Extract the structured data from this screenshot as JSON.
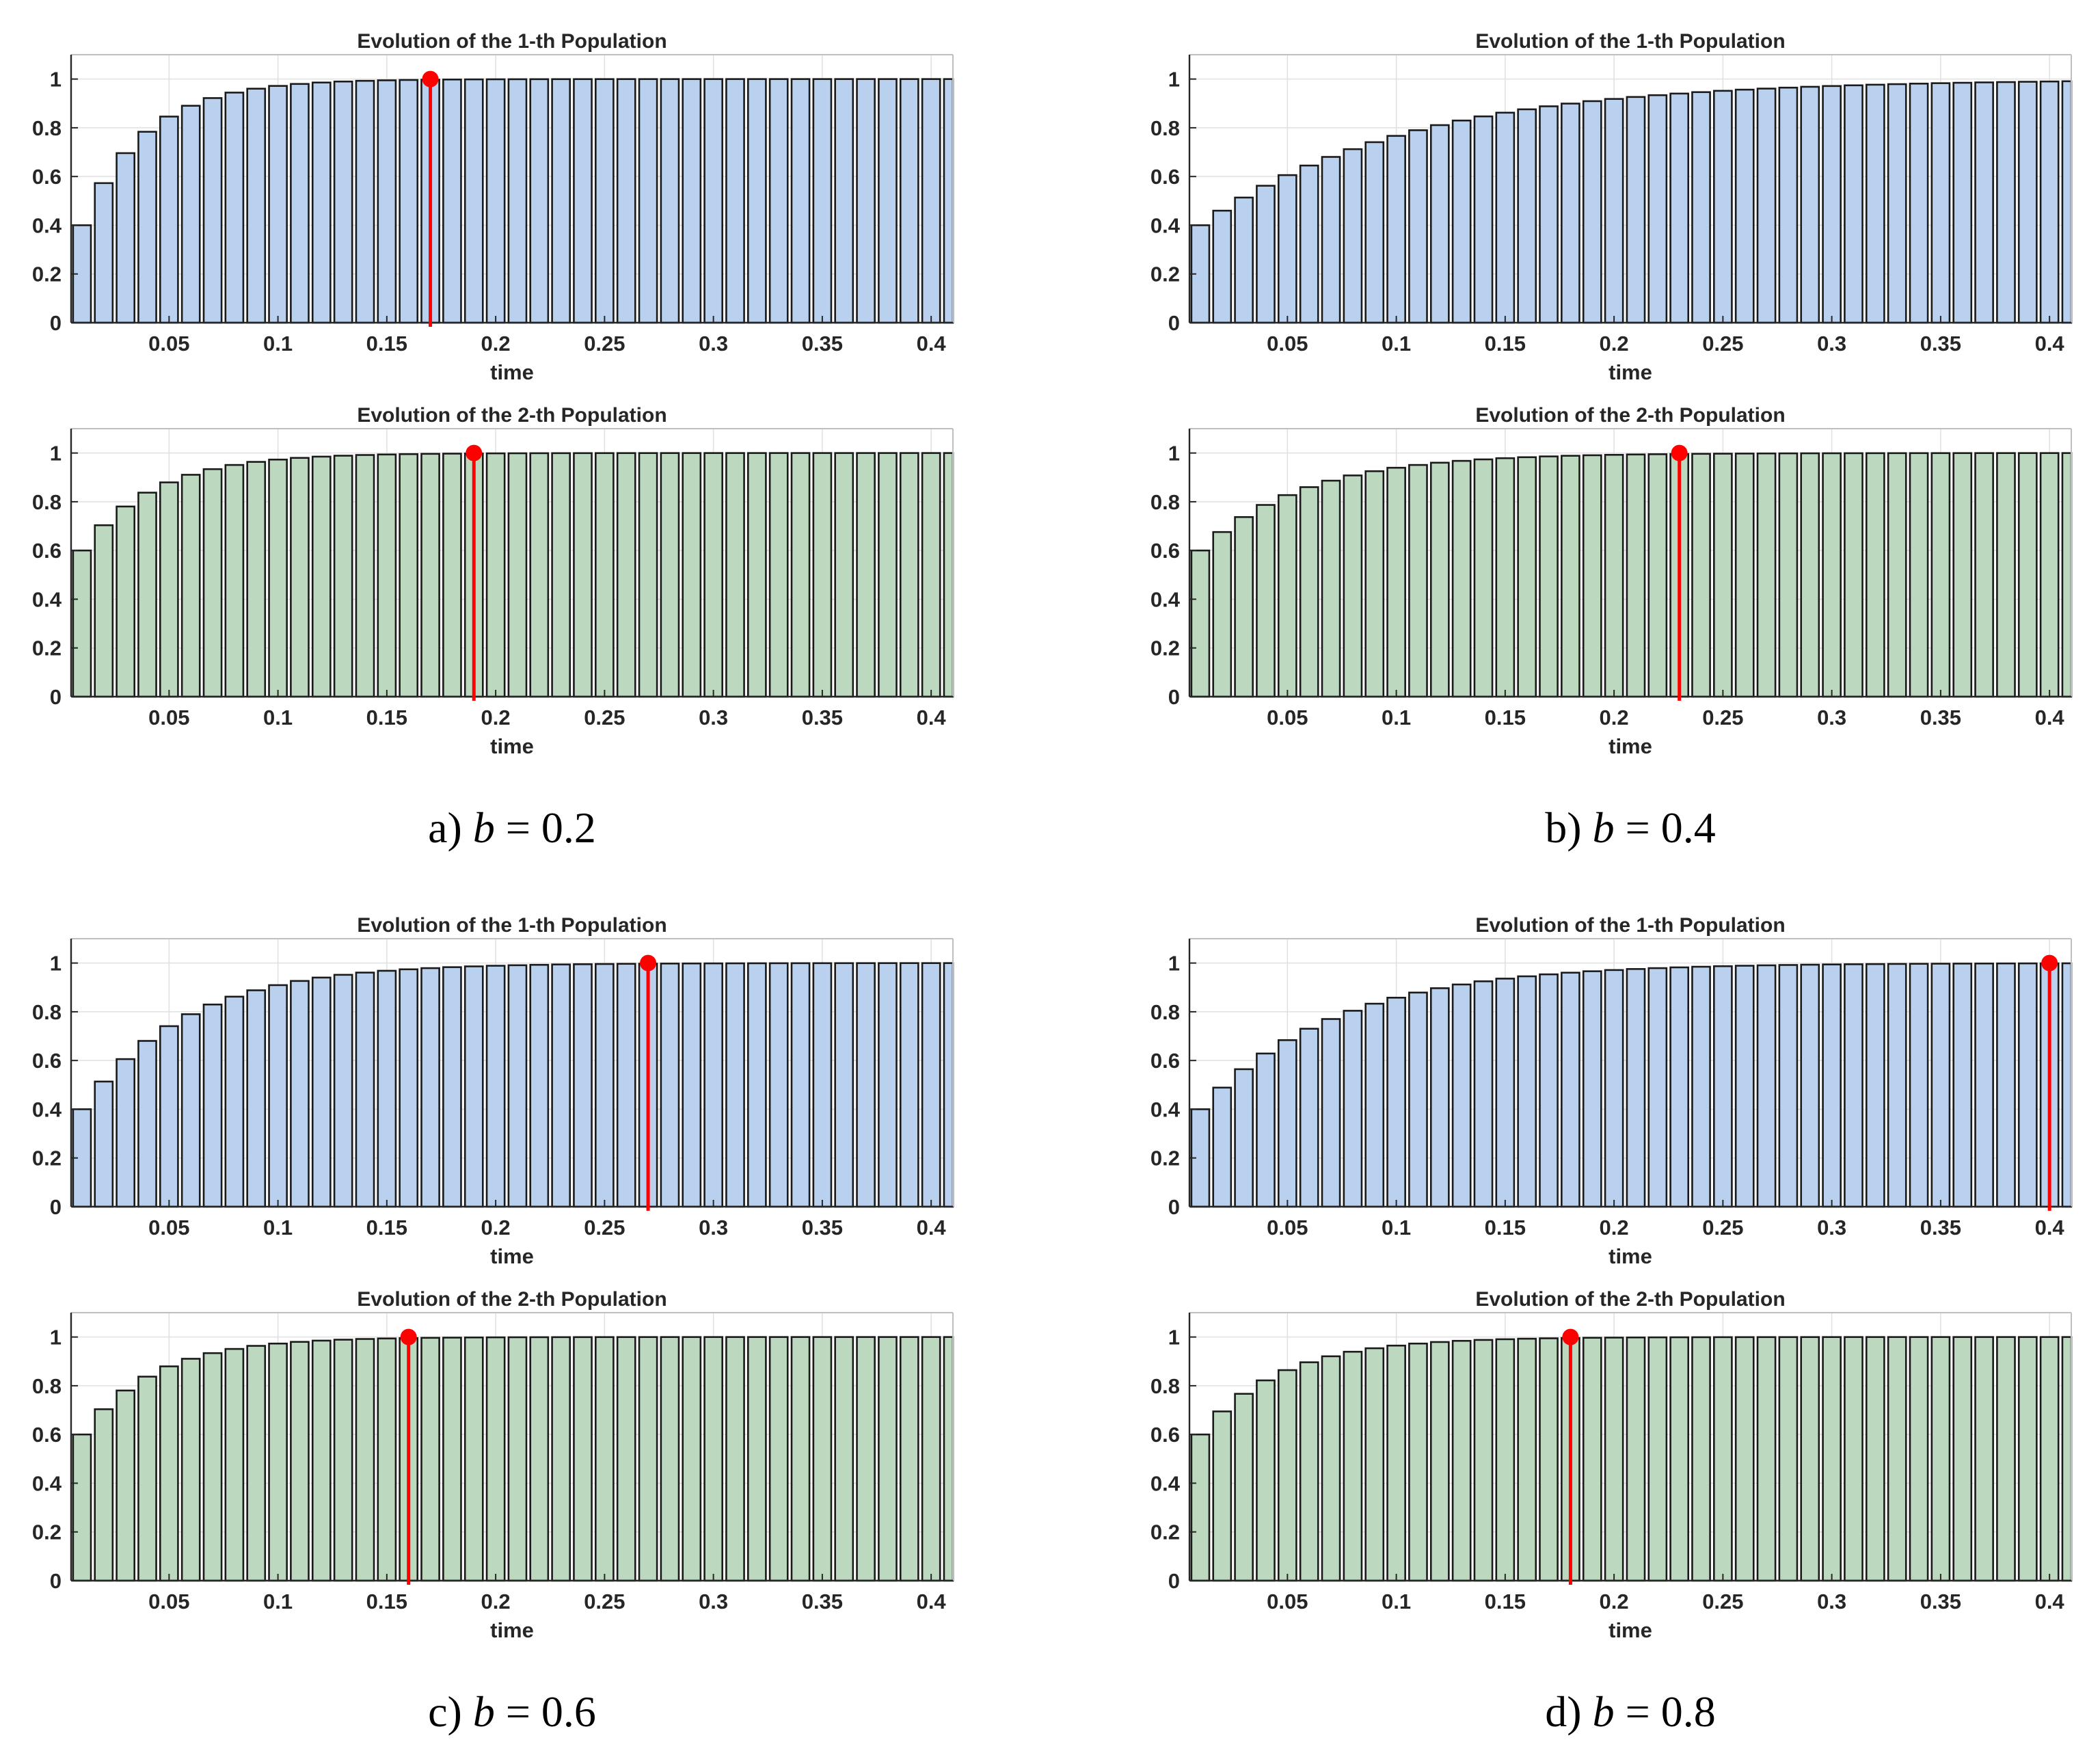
{
  "figure": {
    "panels": [
      {
        "caption": {
          "prefix": "a)",
          "variable": "b",
          "equals": "=",
          "value": "0.2"
        },
        "chart_data": [
          {
            "type": "bar",
            "title": "Evolution of the 1-th Population",
            "xlabel": "time",
            "ylabel": "",
            "xlim": [
              0.005,
              0.41
            ],
            "ylim": [
              0,
              1.1
            ],
            "x_ticks": [
              0.05,
              0.1,
              0.15,
              0.2,
              0.25,
              0.3,
              0.35,
              0.4
            ],
            "x_tick_labels": [
              "0.05",
              "0.1",
              "0.15",
              "0.2",
              "0.25",
              "0.3",
              "0.35",
              "0.4"
            ],
            "y_ticks": [
              0,
              0.2,
              0.4,
              0.6,
              0.8,
              1
            ],
            "y_tick_labels": [
              "0",
              "0.2",
              "0.4",
              "0.6",
              "0.8",
              "1"
            ],
            "grid": true,
            "model": {
              "start": 0.4,
              "rate": 34
            },
            "marker_time": 0.17,
            "marker_value": 1.0,
            "bar_color": "#b9d0ef",
            "marker_color": "#ff0000"
          },
          {
            "type": "bar",
            "title": "Evolution of the 2-th Population",
            "xlabel": "time",
            "ylabel": "",
            "xlim": [
              0.005,
              0.41
            ],
            "ylim": [
              0,
              1.1
            ],
            "x_ticks": [
              0.05,
              0.1,
              0.15,
              0.2,
              0.25,
              0.3,
              0.35,
              0.4
            ],
            "x_tick_labels": [
              "0.05",
              "0.1",
              "0.15",
              "0.2",
              "0.25",
              "0.3",
              "0.35",
              "0.4"
            ],
            "y_ticks": [
              0,
              0.2,
              0.4,
              0.6,
              0.8,
              1
            ],
            "y_tick_labels": [
              "0",
              "0.2",
              "0.4",
              "0.6",
              "0.8",
              "1"
            ],
            "grid": true,
            "model": {
              "start": 0.6,
              "rate": 30
            },
            "marker_time": 0.19,
            "marker_value": 1.0,
            "bar_color": "#bcd9bf",
            "marker_color": "#ff0000"
          }
        ]
      },
      {
        "caption": {
          "prefix": "b)",
          "variable": "b",
          "equals": "=",
          "value": "0.4"
        },
        "chart_data": [
          {
            "type": "bar",
            "title": "Evolution of the 1-th Population",
            "xlabel": "time",
            "ylabel": "",
            "xlim": [
              0.005,
              0.41
            ],
            "ylim": [
              0,
              1.1
            ],
            "x_ticks": [
              0.05,
              0.1,
              0.15,
              0.2,
              0.25,
              0.3,
              0.35,
              0.4
            ],
            "x_tick_labels": [
              "0.05",
              "0.1",
              "0.15",
              "0.2",
              "0.25",
              "0.3",
              "0.35",
              "0.4"
            ],
            "y_ticks": [
              0,
              0.2,
              0.4,
              0.6,
              0.8,
              1
            ],
            "y_tick_labels": [
              "0",
              "0.2",
              "0.4",
              "0.6",
              "0.8",
              "1"
            ],
            "grid": true,
            "model": {
              "start": 0.4,
              "rate": 10.5
            },
            "marker_time": null,
            "marker_value": null,
            "bar_color": "#b9d0ef",
            "marker_color": "#ff0000"
          },
          {
            "type": "bar",
            "title": "Evolution of the 2-th Population",
            "xlabel": "time",
            "ylabel": "",
            "xlim": [
              0.005,
              0.41
            ],
            "ylim": [
              0,
              1.1
            ],
            "x_ticks": [
              0.05,
              0.1,
              0.15,
              0.2,
              0.25,
              0.3,
              0.35,
              0.4
            ],
            "x_tick_labels": [
              "0.05",
              "0.1",
              "0.15",
              "0.2",
              "0.25",
              "0.3",
              "0.35",
              "0.4"
            ],
            "y_ticks": [
              0,
              0.2,
              0.4,
              0.6,
              0.8,
              1
            ],
            "y_tick_labels": [
              "0",
              "0.2",
              "0.4",
              "0.6",
              "0.8",
              "1"
            ],
            "grid": true,
            "model": {
              "start": 0.6,
              "rate": 21
            },
            "marker_time": 0.23,
            "marker_value": 1.0,
            "bar_color": "#bcd9bf",
            "marker_color": "#ff0000"
          }
        ]
      },
      {
        "caption": {
          "prefix": "c)",
          "variable": "b",
          "equals": "=",
          "value": "0.6"
        },
        "chart_data": [
          {
            "type": "bar",
            "title": "Evolution of the 1-th Population",
            "xlabel": "time",
            "ylabel": "",
            "xlim": [
              0.005,
              0.41
            ],
            "ylim": [
              0,
              1.1
            ],
            "x_ticks": [
              0.05,
              0.1,
              0.15,
              0.2,
              0.25,
              0.3,
              0.35,
              0.4
            ],
            "x_tick_labels": [
              "0.05",
              "0.1",
              "0.15",
              "0.2",
              "0.25",
              "0.3",
              "0.35",
              "0.4"
            ],
            "y_ticks": [
              0,
              0.2,
              0.4,
              0.6,
              0.8,
              1
            ],
            "y_tick_labels": [
              "0",
              "0.2",
              "0.4",
              "0.6",
              "0.8",
              "1"
            ],
            "grid": true,
            "model": {
              "start": 0.4,
              "rate": 21
            },
            "marker_time": 0.27,
            "marker_value": 1.0,
            "bar_color": "#b9d0ef",
            "marker_color": "#ff0000"
          },
          {
            "type": "bar",
            "title": "Evolution of the 2-th Population",
            "xlabel": "time",
            "ylabel": "",
            "xlim": [
              0.005,
              0.41
            ],
            "ylim": [
              0,
              1.1
            ],
            "x_ticks": [
              0.05,
              0.1,
              0.15,
              0.2,
              0.25,
              0.3,
              0.35,
              0.4
            ],
            "x_tick_labels": [
              "0.05",
              "0.1",
              "0.15",
              "0.2",
              "0.25",
              "0.3",
              "0.35",
              "0.4"
            ],
            "y_ticks": [
              0,
              0.2,
              0.4,
              0.6,
              0.8,
              1
            ],
            "y_tick_labels": [
              "0",
              "0.2",
              "0.4",
              "0.6",
              "0.8",
              "1"
            ],
            "grid": true,
            "model": {
              "start": 0.6,
              "rate": 30
            },
            "marker_time": 0.16,
            "marker_value": 1.0,
            "bar_color": "#bcd9bf",
            "marker_color": "#ff0000"
          }
        ]
      },
      {
        "caption": {
          "prefix": "d)",
          "variable": "b",
          "equals": "=",
          "value": "0.8"
        },
        "chart_data": [
          {
            "type": "bar",
            "title": "Evolution of the 1-th Population",
            "xlabel": "time",
            "ylabel": "",
            "xlim": [
              0.005,
              0.41
            ],
            "ylim": [
              0,
              1.1
            ],
            "x_ticks": [
              0.05,
              0.1,
              0.15,
              0.2,
              0.25,
              0.3,
              0.35,
              0.4
            ],
            "x_tick_labels": [
              "0.05",
              "0.1",
              "0.15",
              "0.2",
              "0.25",
              "0.3",
              "0.35",
              "0.4"
            ],
            "y_ticks": [
              0,
              0.2,
              0.4,
              0.6,
              0.8,
              1
            ],
            "y_tick_labels": [
              "0",
              "0.2",
              "0.4",
              "0.6",
              "0.8",
              "1"
            ],
            "grid": true,
            "model": {
              "start": 0.4,
              "rate": 16
            },
            "marker_time": 0.4,
            "marker_value": 1.0,
            "bar_color": "#b9d0ef",
            "marker_color": "#ff0000"
          },
          {
            "type": "bar",
            "title": "Evolution of the 2-th Population",
            "xlabel": "time",
            "ylabel": "",
            "xlim": [
              0.005,
              0.41
            ],
            "ylim": [
              0,
              1.1
            ],
            "x_ticks": [
              0.05,
              0.1,
              0.15,
              0.2,
              0.25,
              0.3,
              0.35,
              0.4
            ],
            "x_tick_labels": [
              "0.05",
              "0.1",
              "0.15",
              "0.2",
              "0.25",
              "0.3",
              "0.35",
              "0.4"
            ],
            "y_ticks": [
              0,
              0.2,
              0.4,
              0.6,
              0.8,
              1
            ],
            "y_tick_labels": [
              "0",
              "0.2",
              "0.4",
              "0.6",
              "0.8",
              "1"
            ],
            "grid": true,
            "model": {
              "start": 0.6,
              "rate": 27
            },
            "marker_time": 0.18,
            "marker_value": 1.0,
            "bar_color": "#bcd9bf",
            "marker_color": "#ff0000"
          }
        ]
      }
    ]
  }
}
